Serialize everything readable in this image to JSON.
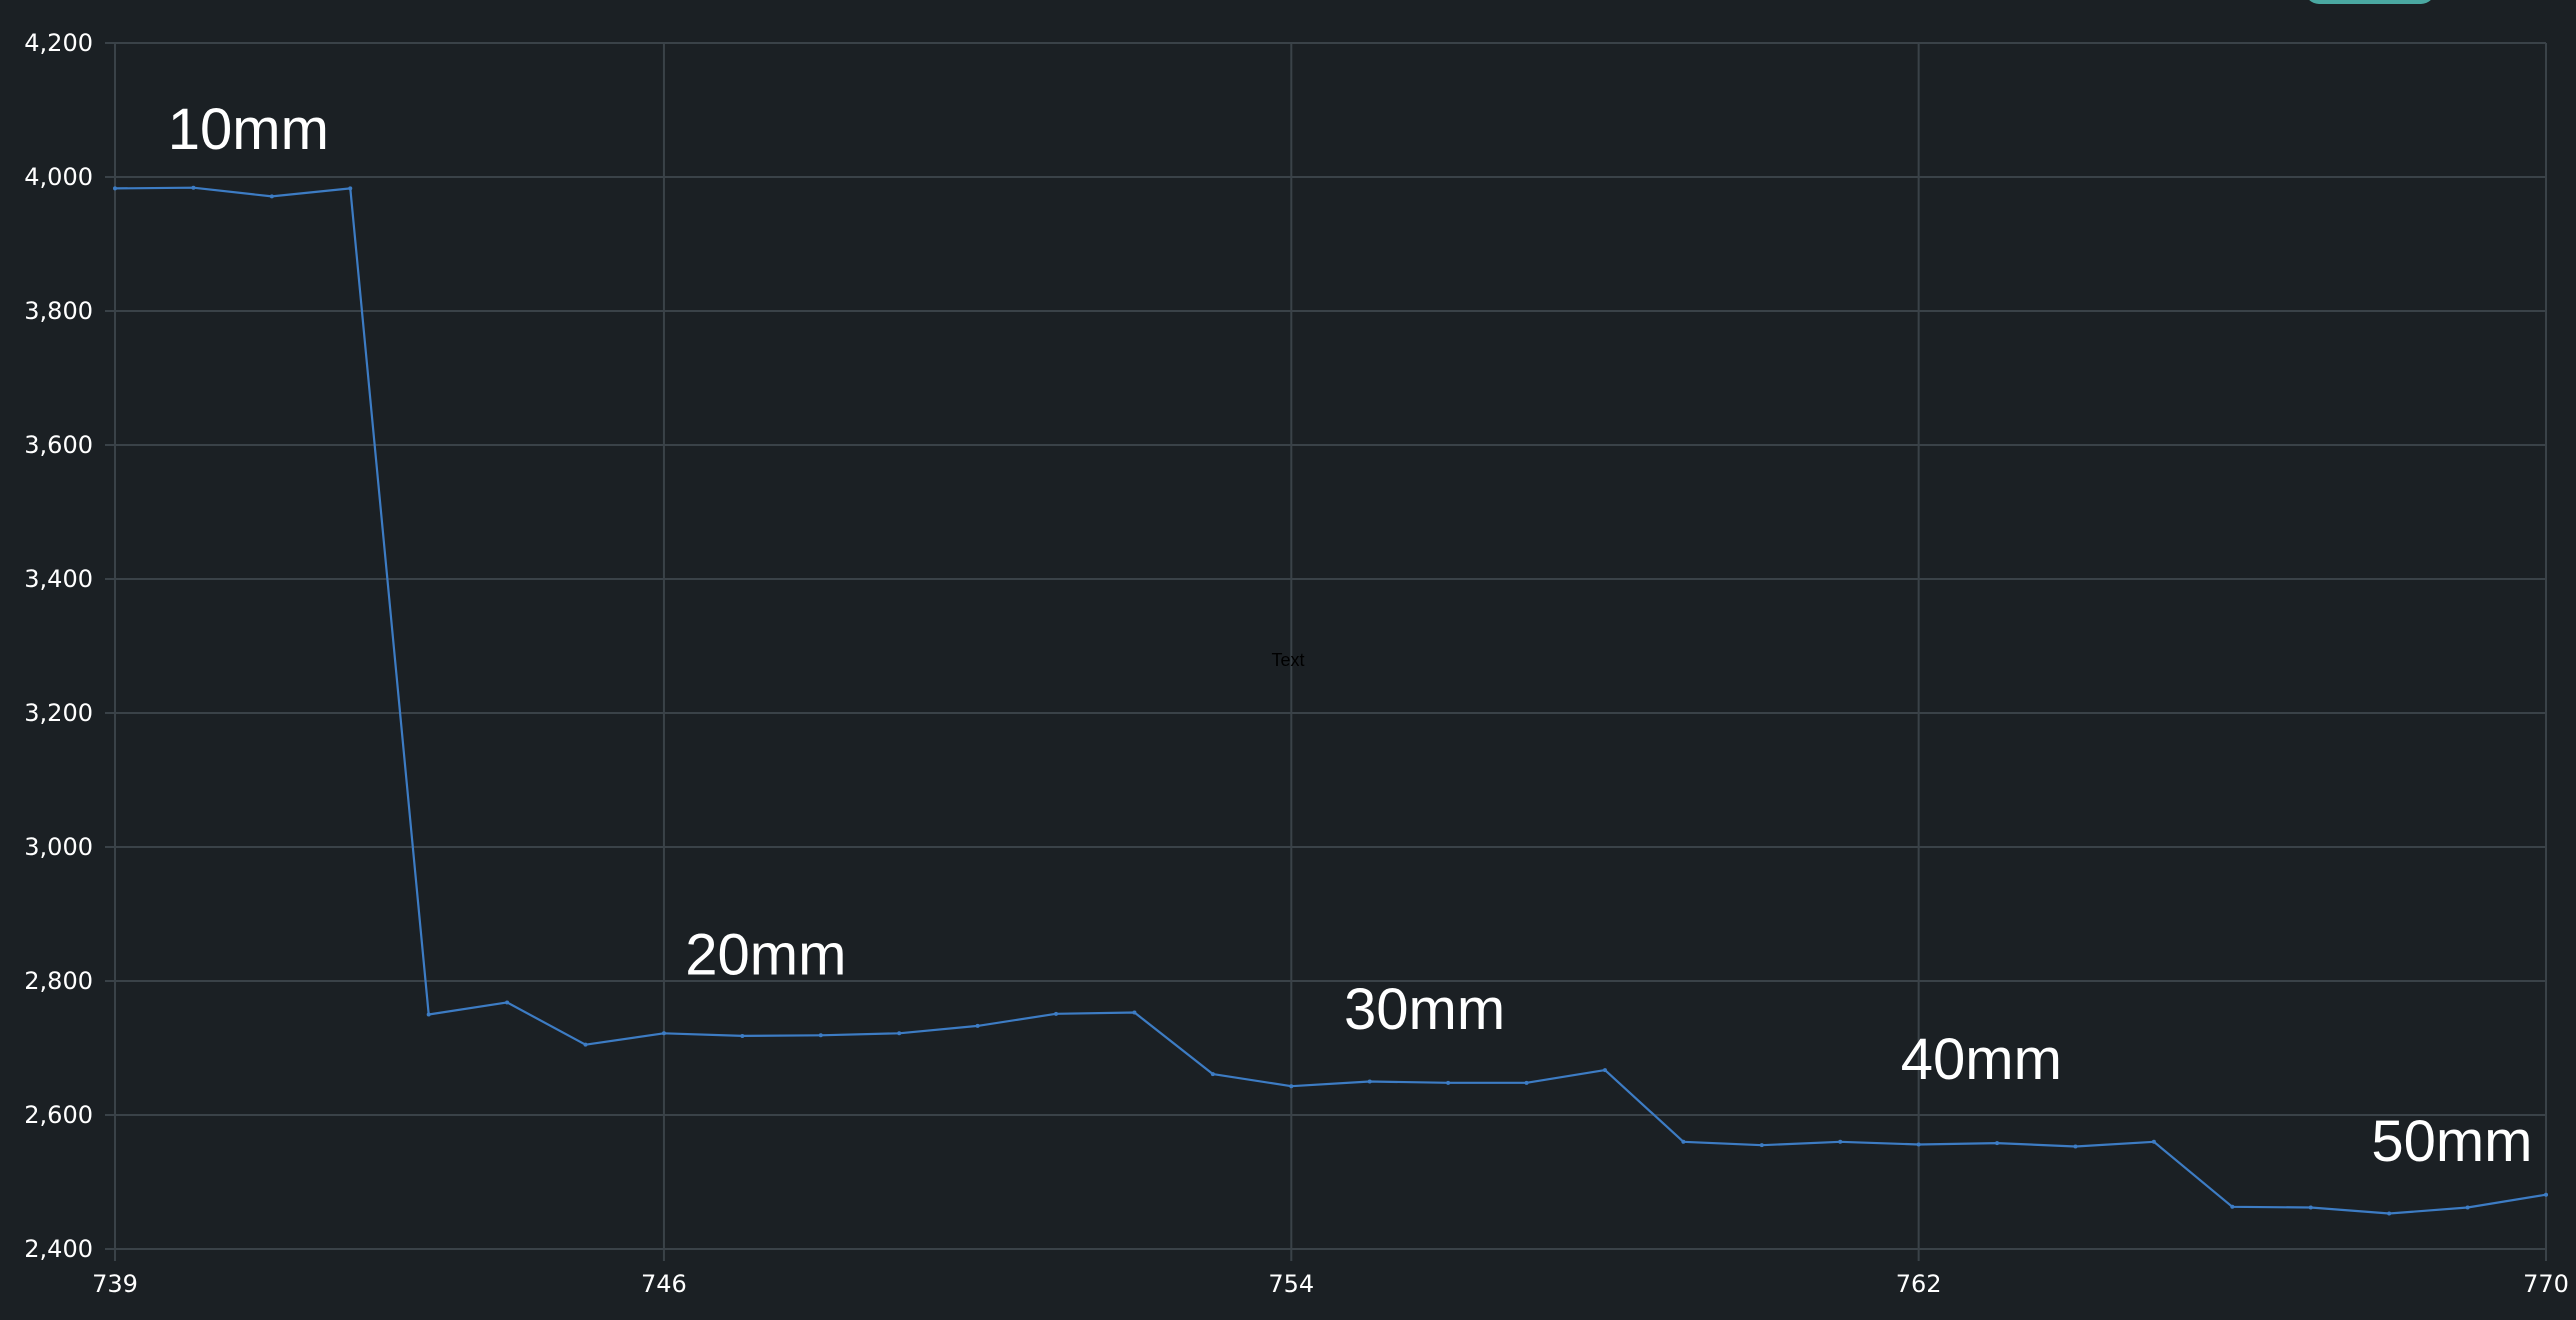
{
  "chart_data": {
    "type": "line",
    "title": "",
    "xlabel": "",
    "ylabel": "",
    "xlim": [
      739,
      770
    ],
    "ylim": [
      2400,
      4200
    ],
    "x_ticks": [
      739,
      746,
      754,
      762,
      770
    ],
    "y_ticks": [
      2400,
      2600,
      2800,
      3000,
      3200,
      3400,
      3600,
      3800,
      4000,
      4200
    ],
    "x_tick_labels": [
      "739",
      "746",
      "754",
      "762",
      "770"
    ],
    "y_tick_labels": [
      "2,400",
      "2,600",
      "2,800",
      "3,000",
      "3,200",
      "3,400",
      "3,600",
      "3,800",
      "4,000",
      "4,200"
    ],
    "grid": true,
    "series": [
      {
        "color": "#3d7cc4",
        "x": [
          739,
          740,
          741,
          742,
          743,
          744,
          745,
          746,
          747,
          748,
          749,
          750,
          751,
          752,
          753,
          754,
          755,
          756,
          757,
          758,
          759,
          760,
          761,
          762,
          763,
          764,
          765,
          766,
          767,
          768,
          769,
          770
        ],
        "y": [
          3983,
          3984,
          3971,
          3983,
          2750,
          2768,
          2705,
          2722,
          2718,
          2719,
          2722,
          2733,
          2751,
          2753,
          2661,
          2643,
          2650,
          2648,
          2648,
          2667,
          2560,
          2555,
          2560,
          2556,
          2558,
          2553,
          2560,
          2463,
          2462,
          2453,
          2462,
          2481
        ]
      }
    ],
    "annotations": [
      {
        "text": "10mm",
        "x": 740.7,
        "y": 4042
      },
      {
        "text": "20mm",
        "x": 747.3,
        "y": 2810
      },
      {
        "text": "30mm",
        "x": 755.7,
        "y": 2728
      },
      {
        "text": "40mm",
        "x": 762.8,
        "y": 2654
      },
      {
        "text": "50mm",
        "x": 768.8,
        "y": 2531
      }
    ],
    "center_text": "Text",
    "accent_button_color": "#4aa8a1"
  }
}
